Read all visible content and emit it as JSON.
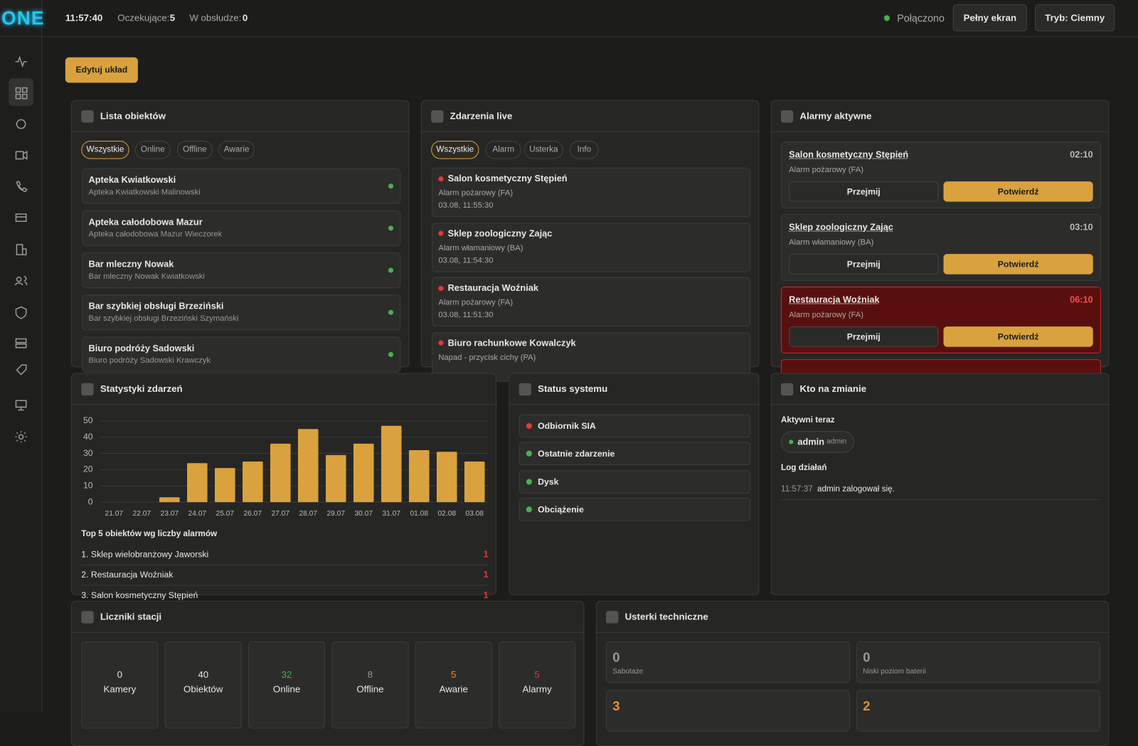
{
  "header": {
    "logo": "ONE",
    "time": "11:57:40",
    "pending_label": "Oczekujące:",
    "pending": 5,
    "in_service_label": "W obsłudze:",
    "in_service": 0,
    "status": "Połączono",
    "buttons": [
      "Pełny ekran",
      "Tryb: Ciemny"
    ]
  },
  "edit_button": "Edytuj układ",
  "objects": {
    "title": "Lista obiektów",
    "filters": [
      "Wszystkie",
      "Online",
      "Offline",
      "Awarie"
    ],
    "items": [
      {
        "name": "Apteka Kwiatkowski",
        "sub": "Apteka Kwiatkowski Malinowski"
      },
      {
        "name": "Apteka całodobowa Mazur",
        "sub": "Apteka całodobowa Mazur Wieczorek"
      },
      {
        "name": "Bar mleczny Nowak",
        "sub": "Bar mleczny Nowak Kwiatkowski"
      },
      {
        "name": "Bar szybkiej obsługi Brzeziński",
        "sub": "Bar szybkiej obsługi Brzeziński Szymański"
      },
      {
        "name": "Biuro podróży Sadowski",
        "sub": "Biuro podróży Sadowski Krawczyk"
      }
    ]
  },
  "events": {
    "title": "Zdarzenia live",
    "filters": [
      "Wszystkie",
      "Alarm",
      "Usterka",
      "Info"
    ],
    "items": [
      {
        "name": "Salon kosmetyczny Stępień",
        "type": "Alarm pożarowy (FA)",
        "time": "03.08, 11:55:30"
      },
      {
        "name": "Sklep zoologiczny Zając",
        "type": "Alarm włamaniowy (BA)",
        "time": "03.08, 11:54:30"
      },
      {
        "name": "Restauracja Woźniak",
        "type": "Alarm pożarowy (FA)",
        "time": "03.08, 11:51:30"
      },
      {
        "name": "Biuro rachunkowe Kowalczyk",
        "type": "Napad - przycisk cichy (PA)"
      }
    ]
  },
  "alarms": {
    "title": "Alarmy aktywne",
    "take": "Przejmij",
    "confirm": "Potwierdź",
    "items": [
      {
        "name": "Salon kosmetyczny Stępień",
        "type": "Alarm pożarowy (FA)",
        "timer": "02:10",
        "critical": false
      },
      {
        "name": "Sklep zoologiczny Zając",
        "type": "Alarm włamaniowy (BA)",
        "timer": "03:10",
        "critical": false
      },
      {
        "name": "Restauracja Woźniak",
        "type": "Alarm pożarowy (FA)",
        "timer": "06:10",
        "critical": true
      }
    ]
  },
  "stats": {
    "title": "Statystyki zdarzeń",
    "top_title": "Top 5 obiektów wg liczby alarmów",
    "top": [
      {
        "name": "1. Sklep wielobranżowy Jaworski",
        "count": 1
      },
      {
        "name": "2. Restauracja Woźniak",
        "count": 1
      },
      {
        "name": "3. Salon kosmetyczny Stępień",
        "count": 1
      }
    ]
  },
  "chart_data": {
    "type": "bar",
    "categories": [
      "21.07",
      "22.07",
      "23.07",
      "24.07",
      "25.07",
      "26.07",
      "27.07",
      "28.07",
      "29.07",
      "30.07",
      "31.07",
      "01.08",
      "02.08",
      "03.08"
    ],
    "values": [
      0,
      0,
      3,
      24,
      21,
      25,
      36,
      45,
      29,
      36,
      47,
      32,
      31,
      25
    ],
    "color": "#d9a23e",
    "ylim": [
      0,
      50
    ],
    "yticks": [
      0,
      10,
      20,
      30,
      40,
      50
    ],
    "grid": true
  },
  "system": {
    "title": "Status systemu",
    "items": [
      {
        "name": "Odbiornik SIA",
        "color": "#e53935"
      },
      {
        "name": "Ostatnie zdarzenie",
        "color": "#4caf50"
      },
      {
        "name": "Dysk",
        "color": "#4caf50"
      },
      {
        "name": "Obciążenie",
        "color": "#4caf50"
      }
    ]
  },
  "shift": {
    "title": "Kto na zmianie",
    "active_label": "Aktywni teraz",
    "user": "admin",
    "role": "admin",
    "log_label": "Log działań",
    "log": [
      {
        "time": "11:57:37",
        "text": "admin zalogował się."
      }
    ]
  },
  "counters": {
    "title": "Liczniki stacji",
    "items": [
      {
        "value": 0,
        "label": "Kamery",
        "color": "#e8e8e8"
      },
      {
        "value": 40,
        "label": "Obiektów",
        "color": "#e8e8e8"
      },
      {
        "value": 32,
        "label": "Online",
        "color": "#4caf50"
      },
      {
        "value": 8,
        "label": "Offline",
        "color": "#9a9a9a"
      },
      {
        "value": 5,
        "label": "Awarie",
        "color": "#e8912e"
      },
      {
        "value": 5,
        "label": "Alarmy",
        "color": "#e53935"
      }
    ]
  },
  "faults": {
    "title": "Usterki techniczne",
    "items": [
      {
        "value": 0,
        "label": "Sabotaże",
        "color": "#9a9a9a"
      },
      {
        "value": 0,
        "label": "Niski poziom baterii",
        "color": "#9a9a9a"
      },
      {
        "value": 3,
        "color": "#e8912e"
      },
      {
        "value": 2,
        "color": "#e8912e"
      }
    ]
  }
}
